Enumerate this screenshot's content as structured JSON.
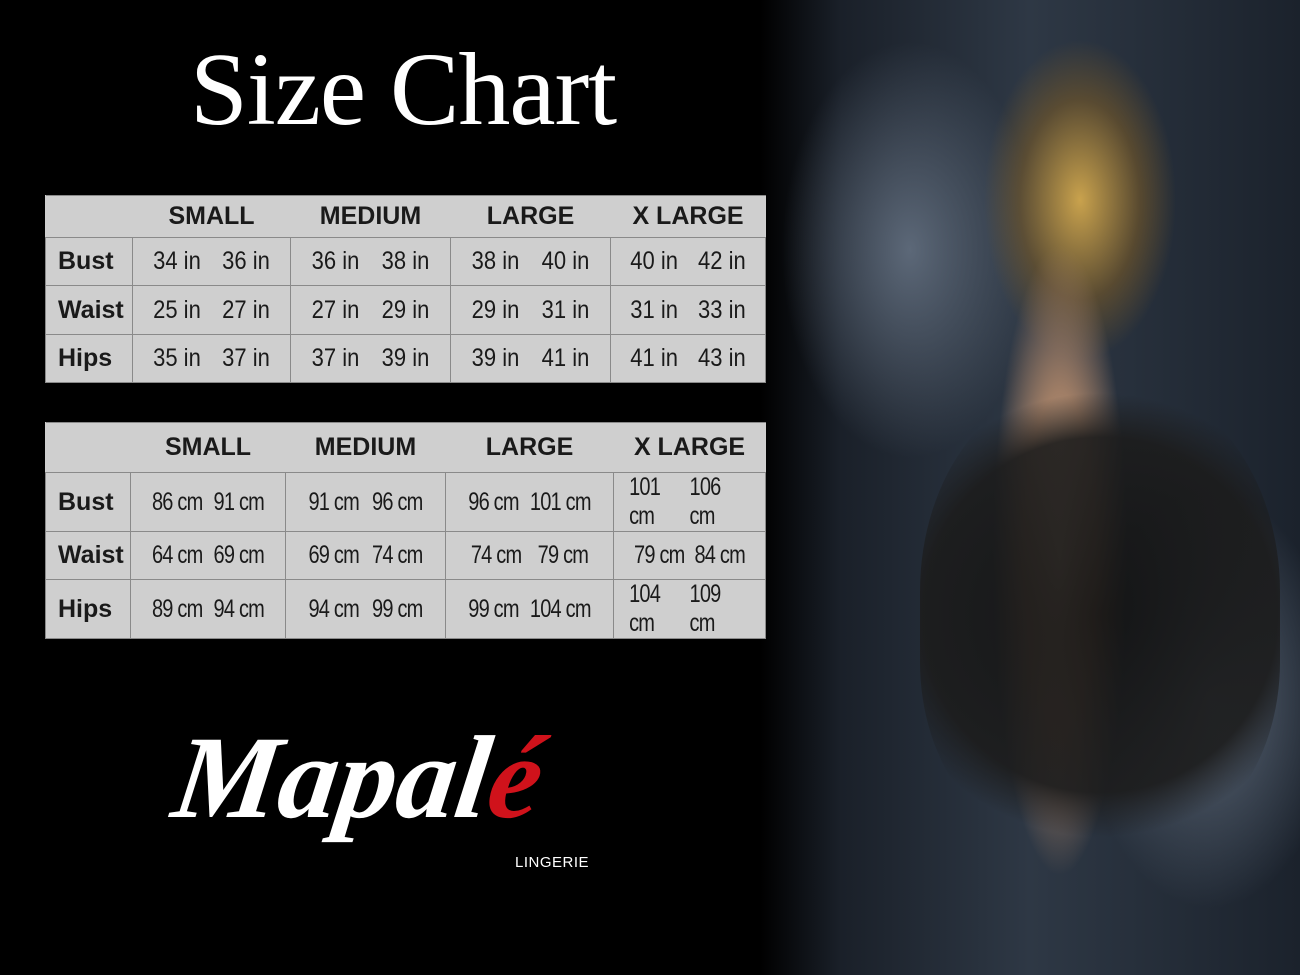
{
  "title": "Size Chart",
  "sizes": [
    "SMALL",
    "MEDIUM",
    "LARGE",
    "X LARGE"
  ],
  "inches": {
    "rows": [
      {
        "label": "Bust",
        "values": [
          "34 in",
          "36 in",
          "36 in",
          "38 in",
          "38 in",
          "40 in",
          "40 in",
          "42 in"
        ]
      },
      {
        "label": "Waist",
        "values": [
          "25 in",
          "27 in",
          "27 in",
          "29 in",
          "29 in",
          "31 in",
          "31 in",
          "33 in"
        ]
      },
      {
        "label": "Hips",
        "values": [
          "35 in",
          "37 in",
          "37 in",
          "39 in",
          "39 in",
          "41 in",
          "41 in",
          "43 in"
        ]
      }
    ]
  },
  "cm": {
    "rows": [
      {
        "label": "Bust",
        "values": [
          "86 cm",
          "91 cm",
          "91 cm",
          "96 cm",
          "96 cm",
          "101 cm",
          "101 cm",
          "106 cm"
        ]
      },
      {
        "label": "Waist",
        "values": [
          "64 cm",
          "69 cm",
          "69 cm",
          "74 cm",
          "74 cm",
          "79  cm",
          "79 cm",
          "84 cm"
        ]
      },
      {
        "label": "Hips",
        "values": [
          "89 cm",
          "94 cm",
          "94 cm",
          "99 cm",
          "99 cm",
          "104 cm",
          "104 cm",
          "109 cm"
        ]
      }
    ]
  },
  "logo": {
    "text": "Mapal",
    "accent": "é",
    "subtitle": "LINGERIE",
    "accent_color": "#d0121b"
  }
}
